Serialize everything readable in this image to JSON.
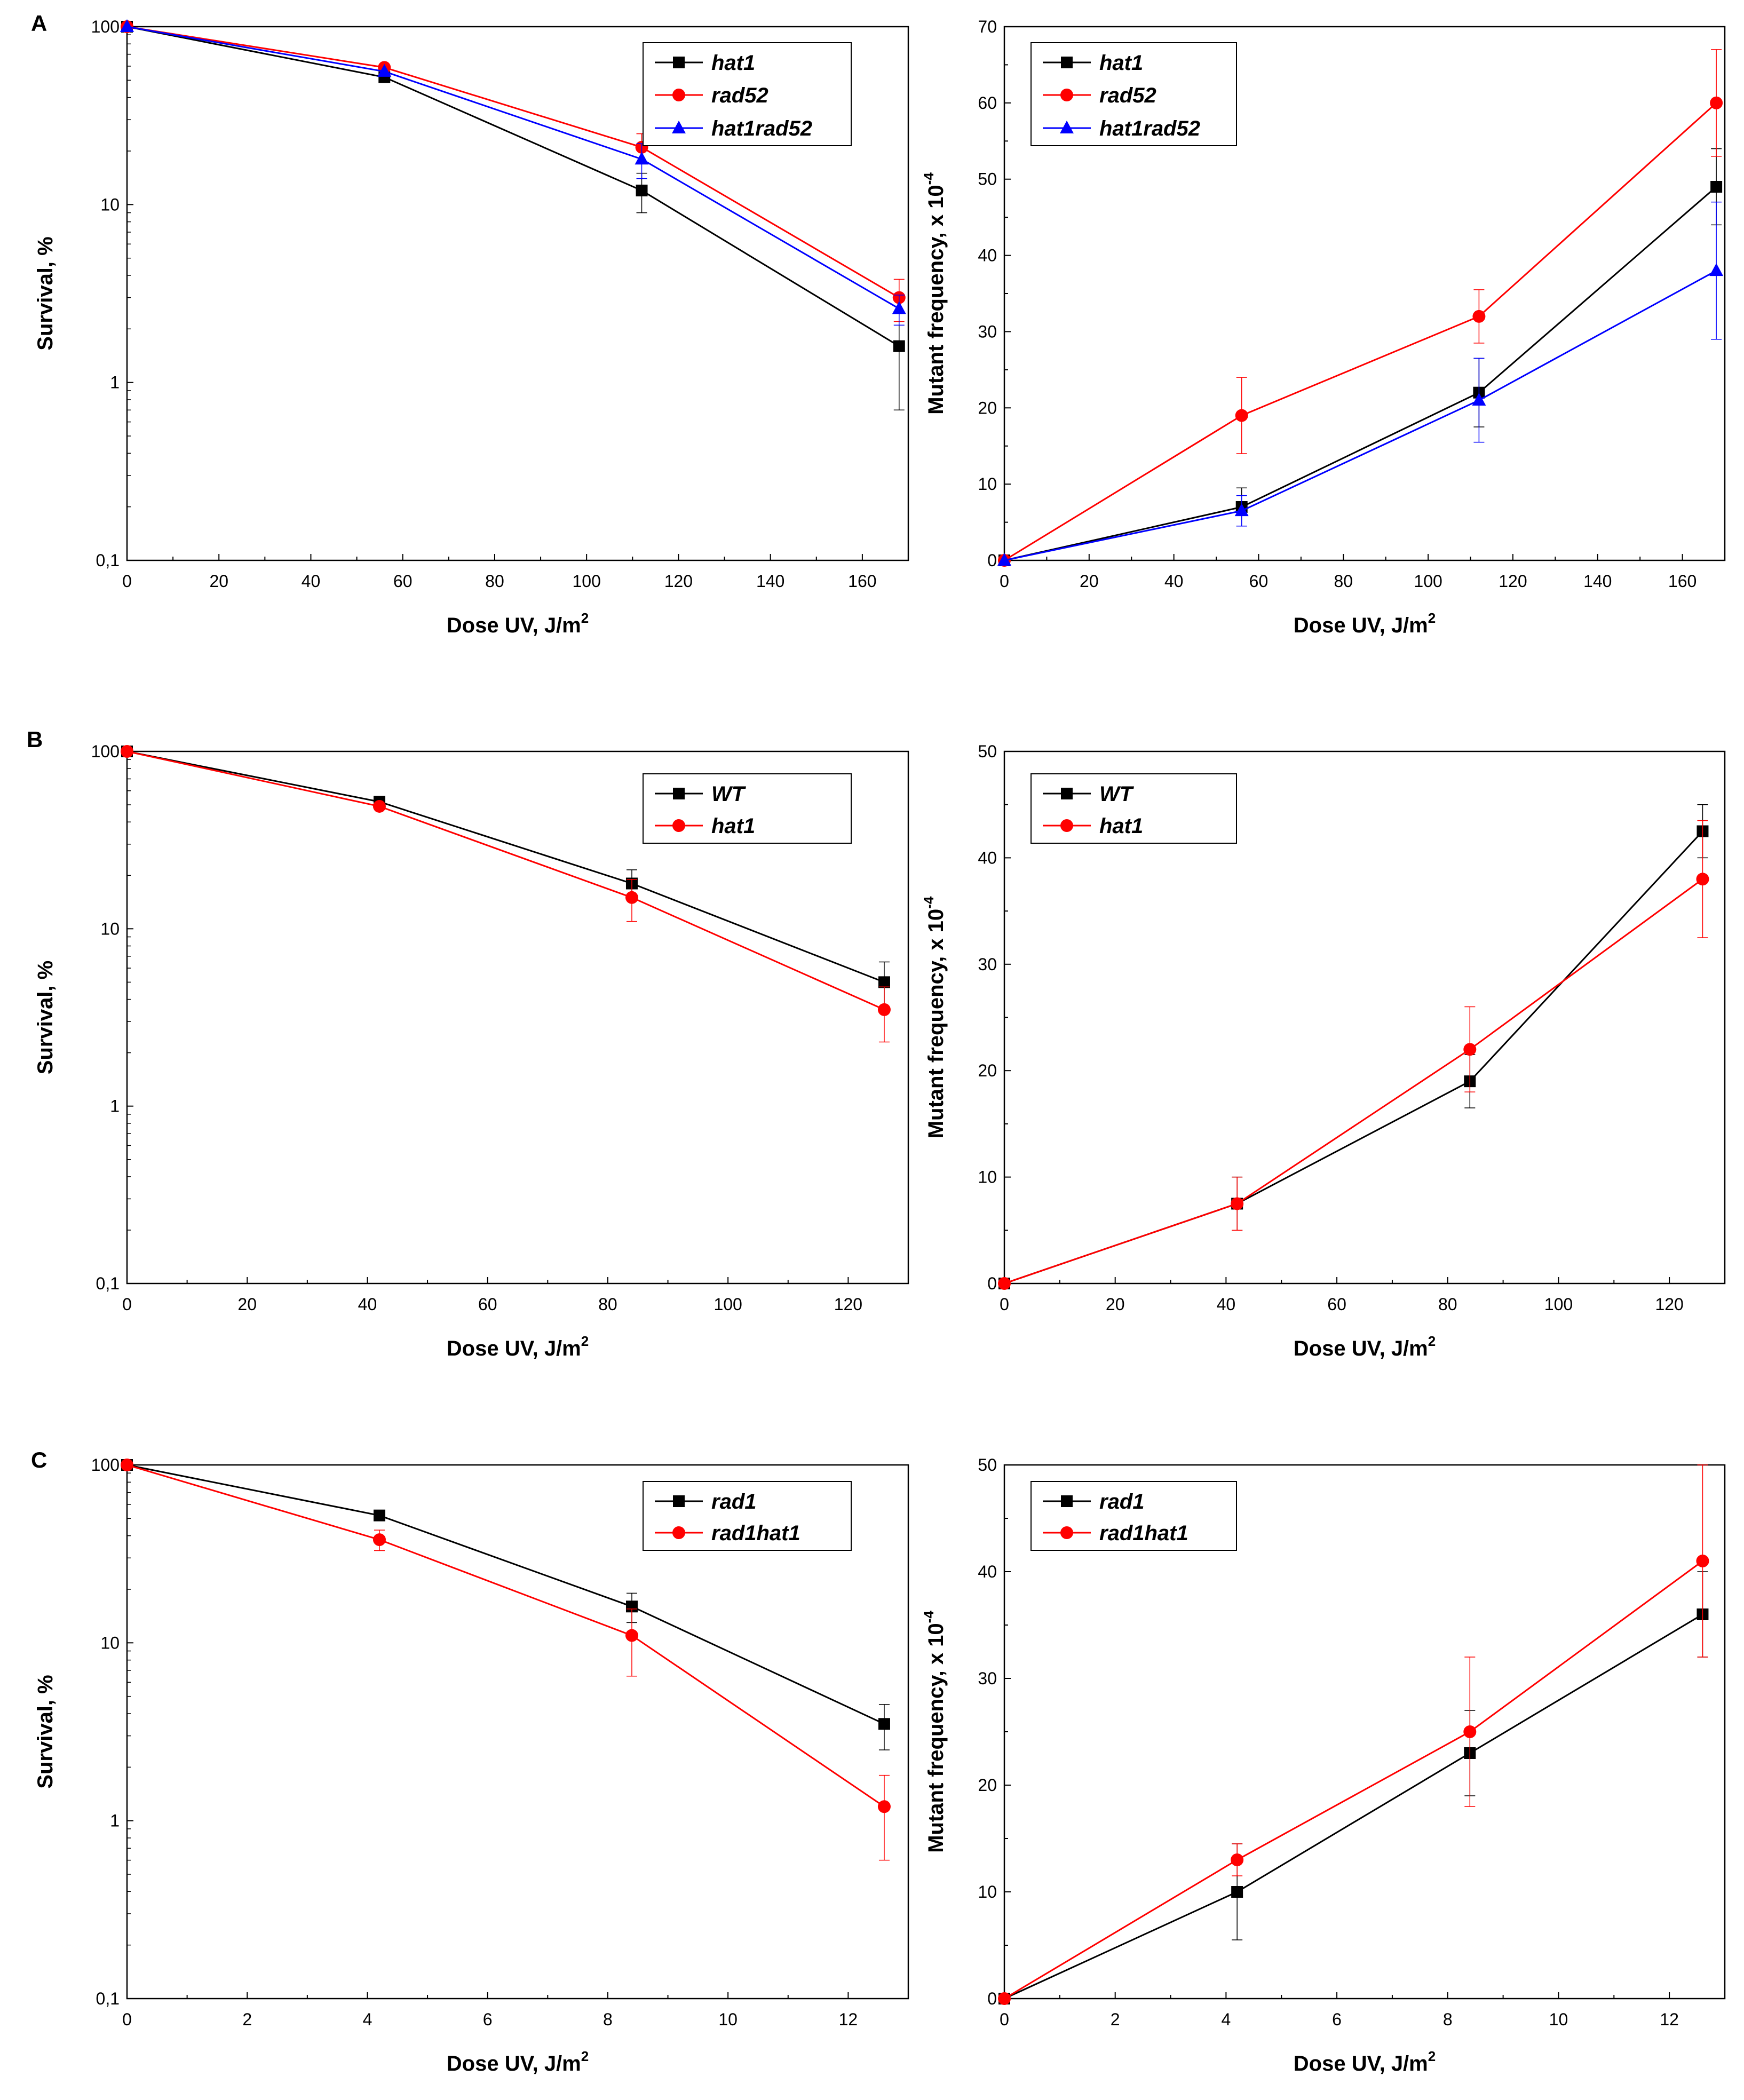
{
  "figure": {
    "panel_letters": [
      "A",
      "B",
      "C"
    ]
  },
  "colors": {
    "black": "#000000",
    "red": "#ff0000",
    "blue": "#0000ff"
  },
  "chart_data": [
    {
      "id": "A-survival",
      "row": 0,
      "col": 0,
      "type": "line",
      "yscale": "log",
      "xlabel": "Dose UV, J/m",
      "xlabel_sup": "2",
      "ylabel": "Survival, %",
      "xlim": [
        0,
        170
      ],
      "ylim": [
        0.1,
        100
      ],
      "xticks": [
        0,
        20,
        40,
        60,
        80,
        100,
        120,
        140,
        160
      ],
      "xtick_labels": [
        "0",
        "20",
        "40",
        "60",
        "80",
        "100",
        "120",
        "140",
        "160"
      ],
      "yticks": [
        0.1,
        1,
        10,
        100
      ],
      "ytick_labels": [
        "0,1",
        "1",
        "10",
        "100"
      ],
      "legend_position": "top-right",
      "series": [
        {
          "name": "hat1",
          "color": "#000000",
          "marker": "square",
          "x": [
            0,
            56,
            112,
            168
          ],
          "values": [
            100,
            52,
            12,
            1.6
          ],
          "err_lo": [
            0,
            0,
            3,
            0.9
          ],
          "err_hi": [
            0,
            0,
            3,
            0.9
          ]
        },
        {
          "name": "rad52",
          "color": "#ff0000",
          "marker": "circle",
          "x": [
            0,
            56,
            112,
            168
          ],
          "values": [
            100,
            59,
            21,
            3.0
          ],
          "err_lo": [
            0,
            0,
            4,
            0.8
          ],
          "err_hi": [
            0,
            0,
            4,
            0.8
          ]
        },
        {
          "name": "hat1rad52",
          "color": "#0000ff",
          "marker": "triangle",
          "x": [
            0,
            56,
            112,
            168
          ],
          "values": [
            100,
            56,
            18,
            2.6
          ],
          "err_lo": [
            0,
            0,
            4,
            0.5
          ],
          "err_hi": [
            0,
            0,
            4,
            0.5
          ]
        }
      ]
    },
    {
      "id": "A-mutant",
      "row": 0,
      "col": 1,
      "type": "line",
      "yscale": "linear",
      "xlabel": "Dose UV, J/m",
      "xlabel_sup": "2",
      "ylabel": "Mutant frequency, x 10",
      "ylabel_sup": "-4",
      "xlim": [
        0,
        170
      ],
      "ylim": [
        0,
        70
      ],
      "xticks": [
        0,
        20,
        40,
        60,
        80,
        100,
        120,
        140,
        160
      ],
      "xtick_labels": [
        "0",
        "20",
        "40",
        "60",
        "80",
        "100",
        "120",
        "140",
        "160"
      ],
      "yticks": [
        0,
        10,
        20,
        30,
        40,
        50,
        60,
        70
      ],
      "ytick_labels": [
        "0",
        "10",
        "20",
        "30",
        "40",
        "50",
        "60",
        "70"
      ],
      "legend_position": "top-left",
      "series": [
        {
          "name": "hat1",
          "color": "#000000",
          "marker": "square",
          "x": [
            0,
            56,
            112,
            168
          ],
          "values": [
            0,
            7,
            22,
            49
          ],
          "err_lo": [
            0,
            2.5,
            4.5,
            5
          ],
          "err_hi": [
            0,
            2.5,
            4.5,
            5
          ]
        },
        {
          "name": "rad52",
          "color": "#ff0000",
          "marker": "circle",
          "x": [
            0,
            56,
            112,
            168
          ],
          "values": [
            0,
            19,
            32,
            60
          ],
          "err_lo": [
            0,
            5,
            3.5,
            7
          ],
          "err_hi": [
            0,
            5,
            3.5,
            7
          ]
        },
        {
          "name": "hat1rad52",
          "color": "#0000ff",
          "marker": "triangle",
          "x": [
            0,
            56,
            112,
            168
          ],
          "values": [
            0,
            6.5,
            21,
            38
          ],
          "err_lo": [
            0,
            2,
            5.5,
            9
          ],
          "err_hi": [
            0,
            2,
            5.5,
            9
          ]
        }
      ]
    },
    {
      "id": "B-survival",
      "row": 1,
      "col": 0,
      "type": "line",
      "yscale": "log",
      "xlabel": "Dose UV, J/m",
      "xlabel_sup": "2",
      "ylabel": "Survival, %",
      "xlim": [
        0,
        130
      ],
      "ylim": [
        0.1,
        100
      ],
      "xticks": [
        0,
        20,
        40,
        60,
        80,
        100,
        120
      ],
      "xtick_labels": [
        "0",
        "20",
        "40",
        "60",
        "80",
        "100",
        "120"
      ],
      "yticks": [
        0.1,
        1,
        10,
        100
      ],
      "ytick_labels": [
        "0,1",
        "1",
        "10",
        "100"
      ],
      "legend_position": "top-right",
      "series": [
        {
          "name": "WT",
          "color": "#000000",
          "marker": "square",
          "x": [
            0,
            42,
            84,
            126
          ],
          "values": [
            100,
            52,
            18,
            5.0
          ],
          "err_lo": [
            0,
            0,
            3.5,
            1.5
          ],
          "err_hi": [
            0,
            0,
            3.5,
            1.5
          ]
        },
        {
          "name": "hat1",
          "color": "#ff0000",
          "marker": "circle",
          "x": [
            0,
            42,
            84,
            126
          ],
          "values": [
            100,
            49,
            15,
            3.5
          ],
          "err_lo": [
            0,
            0,
            4,
            1.2
          ],
          "err_hi": [
            0,
            0,
            4,
            1.2
          ]
        }
      ]
    },
    {
      "id": "B-mutant",
      "row": 1,
      "col": 1,
      "type": "line",
      "yscale": "linear",
      "xlabel": "Dose UV, J/m",
      "xlabel_sup": "2",
      "ylabel": "Mutant frequency, x 10",
      "ylabel_sup": "-4",
      "xlim": [
        0,
        130
      ],
      "ylim": [
        0,
        50
      ],
      "xticks": [
        0,
        20,
        40,
        60,
        80,
        100,
        120
      ],
      "xtick_labels": [
        "0",
        "20",
        "40",
        "60",
        "80",
        "100",
        "120"
      ],
      "yticks": [
        0,
        10,
        20,
        30,
        40,
        50
      ],
      "ytick_labels": [
        "0",
        "10",
        "20",
        "30",
        "40",
        "50"
      ],
      "legend_position": "top-left",
      "series": [
        {
          "name": "WT",
          "color": "#000000",
          "marker": "square",
          "x": [
            0,
            42,
            84,
            126
          ],
          "values": [
            0,
            7.5,
            19,
            42.5
          ],
          "err_lo": [
            0,
            2.5,
            2.5,
            2.5
          ],
          "err_hi": [
            0,
            2.5,
            2.5,
            2.5
          ]
        },
        {
          "name": "hat1",
          "color": "#ff0000",
          "marker": "circle",
          "x": [
            0,
            42,
            84,
            126
          ],
          "values": [
            0,
            7.5,
            22,
            38
          ],
          "err_lo": [
            0,
            2.5,
            4,
            5.5
          ],
          "err_hi": [
            0,
            2.5,
            4,
            5.5
          ]
        }
      ]
    },
    {
      "id": "C-survival",
      "row": 2,
      "col": 0,
      "type": "line",
      "yscale": "log",
      "xlabel": "Dose UV, J/m",
      "xlabel_sup": "2",
      "ylabel": "Survival, %",
      "xlim": [
        0,
        13
      ],
      "ylim": [
        0.1,
        100
      ],
      "xticks": [
        0,
        2,
        4,
        6,
        8,
        10,
        12
      ],
      "xtick_labels": [
        "0",
        "2",
        "4",
        "6",
        "8",
        "10",
        "12"
      ],
      "yticks": [
        0.1,
        1,
        10,
        100
      ],
      "ytick_labels": [
        "0,1",
        "1",
        "10",
        "100"
      ],
      "legend_position": "top-right",
      "series": [
        {
          "name": "rad1",
          "color": "#000000",
          "marker": "square",
          "x": [
            0,
            4.2,
            8.4,
            12.6
          ],
          "values": [
            100,
            52,
            16,
            3.5
          ],
          "err_lo": [
            0,
            0,
            3,
            1.0
          ],
          "err_hi": [
            0,
            0,
            3,
            1.0
          ]
        },
        {
          "name": "rad1hat1",
          "color": "#ff0000",
          "marker": "circle",
          "x": [
            0,
            4.2,
            8.4,
            12.6
          ],
          "values": [
            100,
            38,
            11,
            1.2
          ],
          "err_lo": [
            0,
            5,
            4.5,
            0.6
          ],
          "err_hi": [
            0,
            5,
            4.5,
            0.6
          ]
        }
      ]
    },
    {
      "id": "C-mutant",
      "row": 2,
      "col": 1,
      "type": "line",
      "yscale": "linear",
      "xlabel": "Dose UV, J/m",
      "xlabel_sup": "2",
      "ylabel": "Mutant frequency, x 10",
      "ylabel_sup": "-4",
      "xlim": [
        0,
        13
      ],
      "ylim": [
        0,
        50
      ],
      "xticks": [
        0,
        2,
        4,
        6,
        8,
        10,
        12
      ],
      "xtick_labels": [
        "0",
        "2",
        "4",
        "6",
        "8",
        "10",
        "12"
      ],
      "yticks": [
        0,
        10,
        20,
        30,
        40,
        50
      ],
      "ytick_labels": [
        "0",
        "10",
        "20",
        "30",
        "40",
        "50"
      ],
      "legend_position": "top-left",
      "series": [
        {
          "name": "rad1",
          "color": "#000000",
          "marker": "square",
          "x": [
            0,
            4.2,
            8.4,
            12.6
          ],
          "values": [
            0,
            10,
            23,
            36
          ],
          "err_lo": [
            0,
            4.5,
            4,
            4
          ],
          "err_hi": [
            0,
            4.5,
            4,
            4
          ]
        },
        {
          "name": "rad1hat1",
          "color": "#ff0000",
          "marker": "circle",
          "x": [
            0,
            4.2,
            8.4,
            12.6
          ],
          "values": [
            0,
            13,
            25,
            41
          ],
          "err_lo": [
            0,
            1.5,
            7,
            9
          ],
          "err_hi": [
            0,
            1.5,
            7,
            9
          ]
        }
      ]
    }
  ]
}
